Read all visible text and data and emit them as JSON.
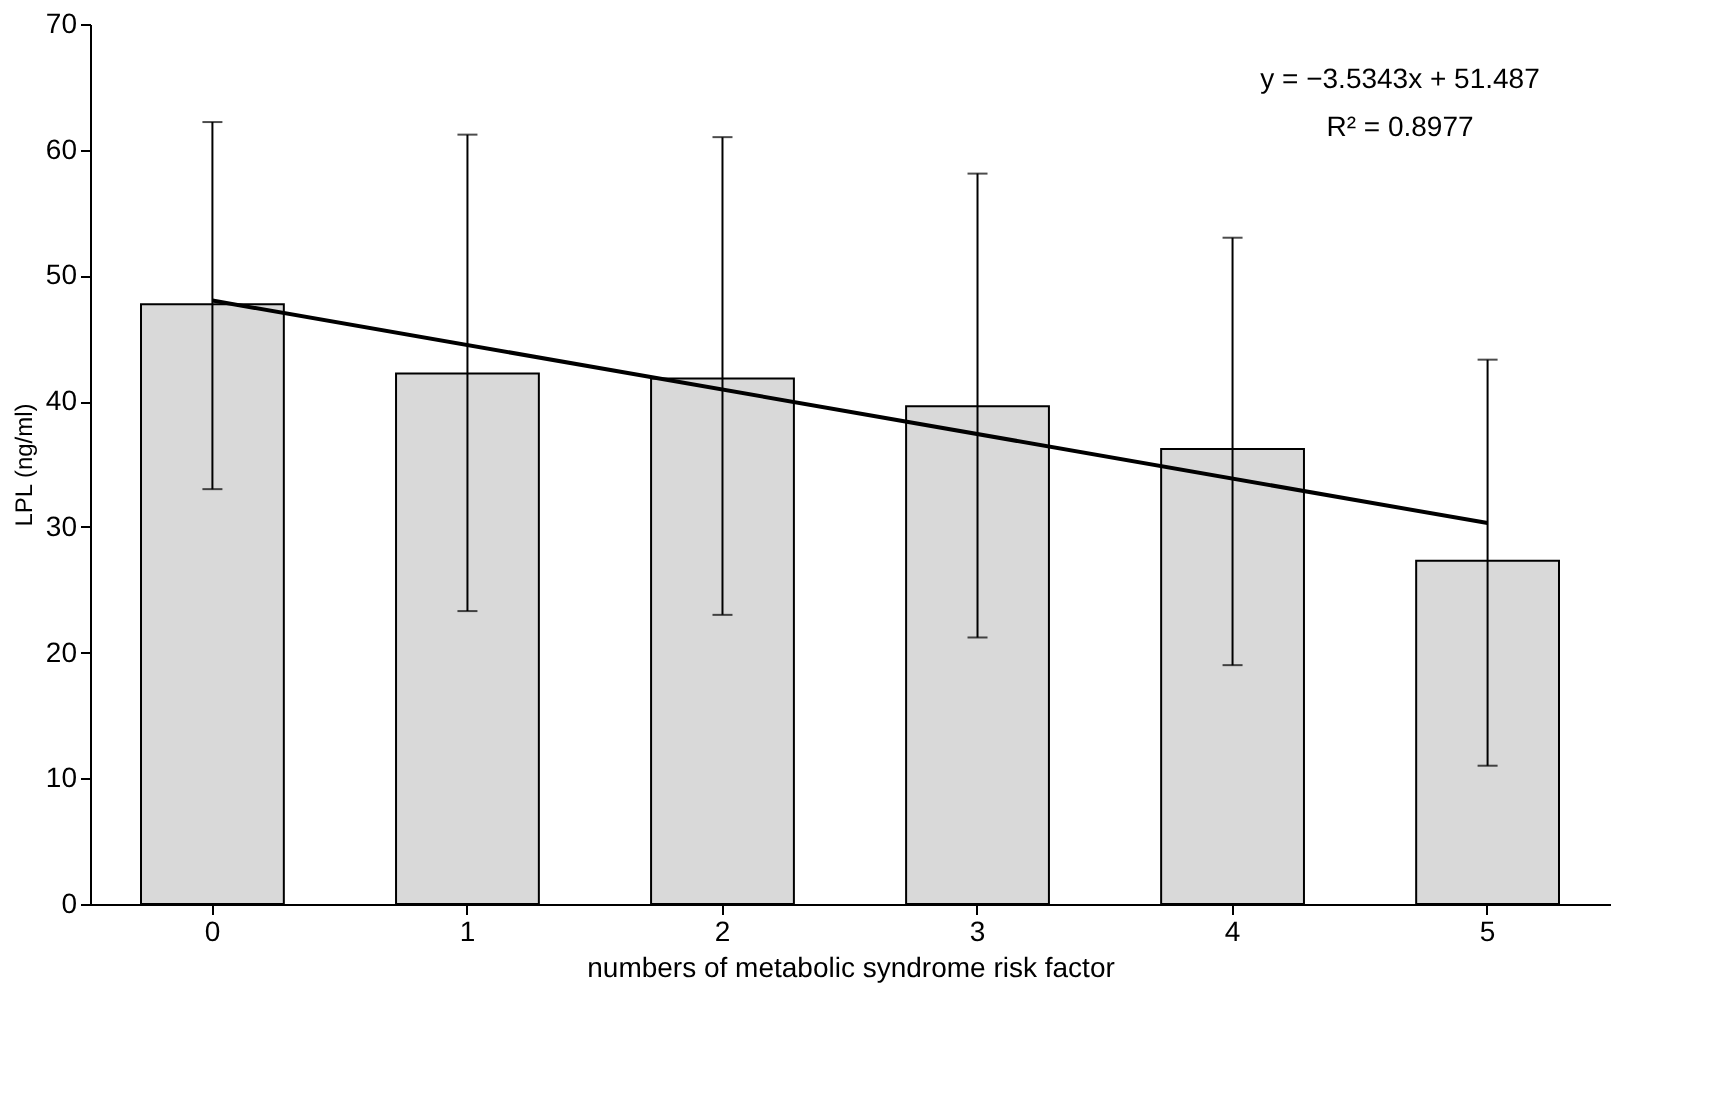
{
  "chart_data": {
    "type": "bar",
    "xlabel": "numbers of metabolic syndrome risk factor",
    "ylabel": "LPL (ng/ml)",
    "categories": [
      "0",
      "1",
      "2",
      "3",
      "4",
      "5"
    ],
    "series": [
      {
        "color": "#d9d9d9",
        "values": [
          47.7,
          42.2,
          41.8,
          39.6,
          36.2,
          27.3
        ],
        "errors": [
          [
            33.0,
            62.2
          ],
          [
            23.3,
            61.2
          ],
          [
            23.0,
            61.0
          ],
          [
            21.2,
            58.1
          ],
          [
            19.0,
            53.0
          ],
          [
            11.0,
            43.3
          ]
        ]
      },
      {
        "type": "line",
        "color": "#000000",
        "x": [
          "0",
          "5"
        ],
        "values": [
          48.0,
          30.3
        ]
      }
    ],
    "ylim": [
      0,
      70
    ],
    "yticks": [
      0,
      10,
      20,
      30,
      40,
      50,
      60,
      70
    ],
    "grid": false,
    "line_style": "solid",
    "marker": "none",
    "annotations": [
      "y = −3.5343x + 51.487",
      "R² = 0.8977"
    ]
  }
}
